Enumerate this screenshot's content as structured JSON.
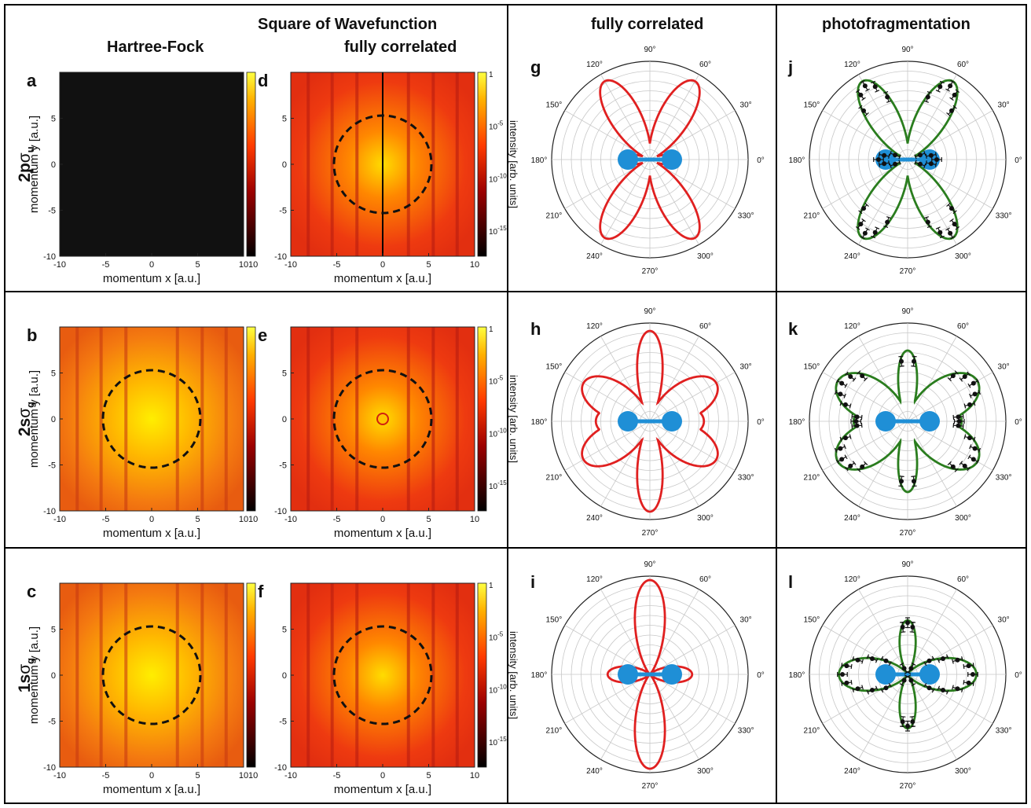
{
  "headers": {
    "square_of_wavefunction": "Square of Wavefunction",
    "hartree_fock": "Hartree-Fock",
    "fully_correlated_sq": "fully correlated",
    "fully_correlated_polar": "fully correlated",
    "photofragmentation": "photofragmentation"
  },
  "rows": [
    {
      "orbital_main": "2p",
      "orbital_sigma": "σ",
      "orbital_sub": "u"
    },
    {
      "orbital_main": "2s",
      "orbital_sigma": "σ",
      "orbital_sub": "g"
    },
    {
      "orbital_main": "1s",
      "orbital_sigma": "σ",
      "orbital_sub": "g"
    }
  ],
  "panel_letters": {
    "hf": [
      "a",
      "b",
      "c"
    ],
    "fc": [
      "d",
      "e",
      "f"
    ],
    "polar_fc": [
      "g",
      "h",
      "i"
    ],
    "polar_pf": [
      "j",
      "k",
      "l"
    ]
  },
  "axes": {
    "xlabel": "momentum x [a.u.]",
    "ylabel": "momentum y [a.u.]",
    "xticks": [
      "-10",
      "-5",
      "0",
      "5",
      "10"
    ],
    "yticks": [
      "5",
      "0",
      "-5",
      "-10"
    ],
    "colorbar_label": "intensity [arb. units]",
    "colorbar_ticks": [
      {
        "base": "1",
        "exp": ""
      },
      {
        "base": "10",
        "exp": "-5"
      },
      {
        "base": "10",
        "exp": "-10"
      },
      {
        "base": "10",
        "exp": "-15"
      }
    ],
    "angle_labels": [
      "0°",
      "30°",
      "60°",
      "90°",
      "120°",
      "150°",
      "180°",
      "210°",
      "240°",
      "270°",
      "300°",
      "330°"
    ]
  },
  "colors": {
    "polar_fc_curve": "#e02020",
    "polar_pf_curve": "#2a7d1e",
    "molecule": "#1f8fd6",
    "heat_dark": "#8a0000",
    "heat_bright": "#ffe000",
    "hf_2p_fill": "#111111"
  },
  "chart_data": [
    {
      "panel": "a",
      "type": "heatmap",
      "description_value": "zero intensity map",
      "xlim": [
        -10,
        10
      ],
      "ylim": [
        -10,
        10
      ],
      "dashed_circle_radius": 0
    },
    {
      "panel": "d",
      "type": "heatmap",
      "xlim": [
        -10,
        10
      ],
      "ylim": [
        -10,
        10
      ],
      "dashed_circle_radius": 5.3
    },
    {
      "panel": "b",
      "type": "heatmap",
      "xlim": [
        -10,
        10
      ],
      "ylim": [
        -10,
        10
      ],
      "dashed_circle_radius": 5.3
    },
    {
      "panel": "e",
      "type": "heatmap",
      "xlim": [
        -10,
        10
      ],
      "ylim": [
        -10,
        10
      ],
      "dashed_circle_radius": 5.3
    },
    {
      "panel": "c",
      "type": "heatmap",
      "xlim": [
        -10,
        10
      ],
      "ylim": [
        -10,
        10
      ],
      "dashed_circle_radius": 5.3
    },
    {
      "panel": "f",
      "type": "heatmap",
      "xlim": [
        -10,
        10
      ],
      "ylim": [
        -10,
        10
      ],
      "dashed_circle_radius": 5.3
    },
    {
      "panel": "g",
      "type": "polar",
      "lobes_deg": [
        60,
        120,
        240,
        300
      ],
      "small_lobes_deg": [
        0,
        180
      ],
      "lobe_peak": 1.0,
      "small_peak": 0.33
    },
    {
      "panel": "h",
      "type": "polar",
      "lobes_deg": [
        90,
        270,
        30,
        150,
        210,
        330
      ],
      "lobe_peak": 0.9,
      "side_peak": 0.75
    },
    {
      "panel": "i",
      "type": "polar",
      "lobes_deg": [
        90,
        270,
        0,
        180
      ],
      "vertical_peak": 0.96,
      "horizontal_peak": 0.43
    },
    {
      "panel": "j",
      "type": "polar",
      "lobes_deg": [
        60,
        120,
        240,
        300
      ],
      "data_points": 34
    },
    {
      "panel": "k",
      "type": "polar",
      "lobes_deg": [
        90,
        270,
        30,
        150,
        210,
        330
      ],
      "data_points": 36
    },
    {
      "panel": "l",
      "type": "polar",
      "lobes_deg": [
        0,
        180,
        90,
        270
      ],
      "data_points": 40
    }
  ]
}
